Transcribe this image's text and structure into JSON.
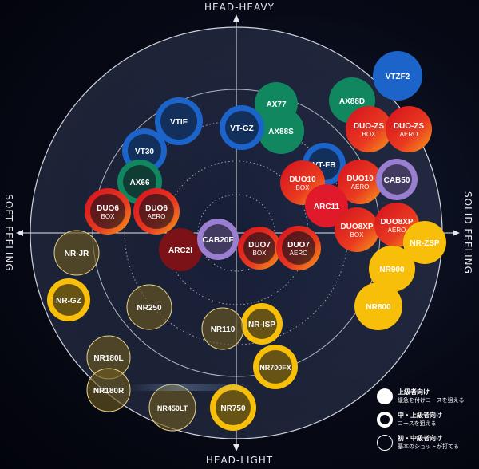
{
  "axes": {
    "top": "HEAD-HEAVY",
    "bottom": "HEAD-LIGHT",
    "left": "SOFT FEELING",
    "right": "SOLID FEELING"
  },
  "colors": {
    "background": "#04060e",
    "ring": "#cfd3dc",
    "blue": "#1c64c9",
    "green": "#11875f",
    "red": "#e01a2a",
    "orange": "#f28a18",
    "purple": "#9a7fd0",
    "darkred": "#7a1218",
    "gold": "#f7bf0a",
    "olive": "#6e5a20"
  },
  "rackets": [
    {
      "id": "VTZF2",
      "line1": "VTZF2",
      "line2": "",
      "color": "blue",
      "style": "solid"
    },
    {
      "id": "AX88D",
      "line1": "AX88D",
      "line2": "",
      "color": "green",
      "style": "solid"
    },
    {
      "id": "AX77",
      "line1": "AX77",
      "line2": "",
      "color": "green",
      "style": "solid"
    },
    {
      "id": "AX88S",
      "line1": "AX88S",
      "line2": "",
      "color": "green",
      "style": "solid"
    },
    {
      "id": "VT-GZ",
      "line1": "VT-GZ",
      "line2": "",
      "color": "blue",
      "style": "ring"
    },
    {
      "id": "VTIF",
      "line1": "VTIF",
      "line2": "",
      "color": "blue",
      "style": "ring"
    },
    {
      "id": "VT30",
      "line1": "VT30",
      "line2": "",
      "color": "blue",
      "style": "ring"
    },
    {
      "id": "AX66",
      "line1": "AX66",
      "line2": "",
      "color": "green",
      "style": "ring"
    },
    {
      "id": "DUO-ZS-BOX",
      "line1": "DUO-ZS",
      "line2": "BOX",
      "color": "duo",
      "style": "solid"
    },
    {
      "id": "DUO-ZS-AERO",
      "line1": "DUO-ZS",
      "line2": "AERO",
      "color": "duo",
      "style": "solid"
    },
    {
      "id": "VT-FB",
      "line1": "VT-FB",
      "line2": "",
      "color": "blue",
      "style": "ring"
    },
    {
      "id": "DUO10-BOX",
      "line1": "DUO10",
      "line2": "BOX",
      "color": "duo",
      "style": "solid"
    },
    {
      "id": "DUO10-AERO",
      "line1": "DUO10",
      "line2": "AERO",
      "color": "duo",
      "style": "solid"
    },
    {
      "id": "CAB50",
      "line1": "CAB50",
      "line2": "",
      "color": "purple",
      "style": "ring"
    },
    {
      "id": "ARC11",
      "line1": "ARC11",
      "line2": "",
      "color": "red",
      "style": "solid"
    },
    {
      "id": "DUO8XP-BOX",
      "line1": "DUO8XP",
      "line2": "BOX",
      "color": "duo",
      "style": "solid"
    },
    {
      "id": "DUO8XP-AERO",
      "line1": "DUO8XP",
      "line2": "AERO",
      "color": "duo",
      "style": "solid"
    },
    {
      "id": "DUO6-BOX",
      "line1": "DUO6",
      "line2": "BOX",
      "color": "duo",
      "style": "ring"
    },
    {
      "id": "DUO6-AERO",
      "line1": "DUO6",
      "line2": "AERO",
      "color": "duo",
      "style": "ring"
    },
    {
      "id": "NR-ZSP",
      "line1": "NR-ZSP",
      "line2": "",
      "color": "gold",
      "style": "solid"
    },
    {
      "id": "ARC2I",
      "line1": "ARC2I",
      "line2": "",
      "color": "darkred",
      "style": "solid"
    },
    {
      "id": "CAB20F",
      "line1": "CAB20F",
      "line2": "",
      "color": "purple",
      "style": "ring"
    },
    {
      "id": "DUO7-BOX",
      "line1": "DUO7",
      "line2": "BOX",
      "color": "duo",
      "style": "ring"
    },
    {
      "id": "DUO7-AERO",
      "line1": "DUO7",
      "line2": "AERO",
      "color": "duo",
      "style": "ring"
    },
    {
      "id": "NR-JR",
      "line1": "NR-JR",
      "line2": "",
      "color": "olive",
      "style": "thin"
    },
    {
      "id": "NR900",
      "line1": "NR900",
      "line2": "",
      "color": "gold",
      "style": "solid"
    },
    {
      "id": "NR-GZ",
      "line1": "NR-GZ",
      "line2": "",
      "color": "gold",
      "style": "ring"
    },
    {
      "id": "NR800",
      "line1": "NR800",
      "line2": "",
      "color": "gold",
      "style": "solid"
    },
    {
      "id": "NR250",
      "line1": "NR250",
      "line2": "",
      "color": "olive",
      "style": "thin"
    },
    {
      "id": "NR-ISP",
      "line1": "NR-ISP",
      "line2": "",
      "color": "gold",
      "style": "ring"
    },
    {
      "id": "NR110",
      "line1": "NR110",
      "line2": "",
      "color": "olive",
      "style": "thin"
    },
    {
      "id": "NR700FX",
      "line1": "NR700FX",
      "line2": "",
      "color": "gold",
      "style": "ring"
    },
    {
      "id": "NR180L",
      "line1": "NR180L",
      "line2": "",
      "color": "olive",
      "style": "thin"
    },
    {
      "id": "NR180R",
      "line1": "NR180R",
      "line2": "",
      "color": "olive",
      "style": "thin"
    },
    {
      "id": "NR450LT",
      "line1": "NR450LT",
      "line2": "",
      "color": "olive",
      "style": "thin"
    },
    {
      "id": "NR750",
      "line1": "NR750",
      "line2": "",
      "color": "gold",
      "style": "ring"
    }
  ],
  "legend": [
    {
      "symbol": "solid",
      "title": "上級者向け",
      "desc": "緩急を付けコースを狙える"
    },
    {
      "symbol": "thick",
      "title": "中・上級者向け",
      "desc": "コースを狙える"
    },
    {
      "symbol": "thin",
      "title": "初・中級者向け",
      "desc": "基本のショットが打てる"
    }
  ]
}
